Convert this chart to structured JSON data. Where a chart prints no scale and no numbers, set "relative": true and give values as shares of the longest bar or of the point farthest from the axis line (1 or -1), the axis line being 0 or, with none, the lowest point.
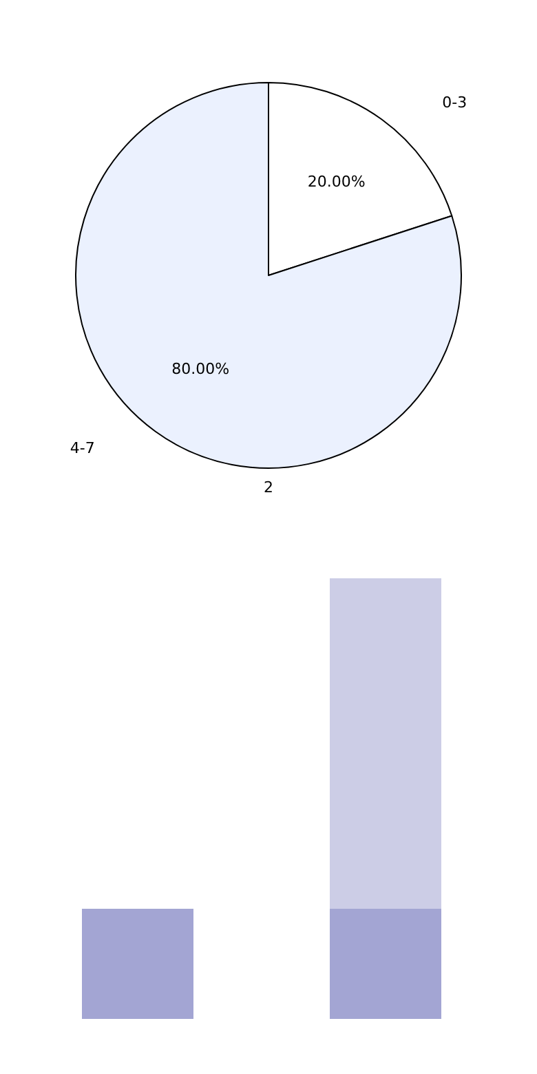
{
  "chart_data": [
    {
      "type": "pie",
      "categories": [
        "0-3",
        "4-7"
      ],
      "values": [
        20,
        80
      ],
      "colors": [
        "#ffffff",
        "#ebf1fe"
      ],
      "value_labels": [
        "20.00%",
        "80.00%"
      ],
      "annotations": [
        "2"
      ]
    },
    {
      "type": "bar",
      "relative": true,
      "stacked": true,
      "categories": [
        null,
        null
      ],
      "series": [
        {
          "color": "#a3a5d3",
          "values": [
            0.25,
            0.25
          ]
        },
        {
          "color": "#cccde6",
          "values": [
            null,
            0.75
          ]
        }
      ]
    }
  ]
}
